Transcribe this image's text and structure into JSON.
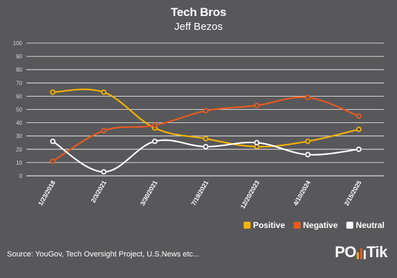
{
  "chart_data": {
    "type": "line",
    "title": "Tech Bros",
    "subtitle": "Jeff Bezos",
    "categories": [
      "1/23/2018",
      "2/3/2021",
      "3/30/2021",
      "7/19/2021",
      "12/20/2023",
      "4/10/2024",
      "2/15/2025"
    ],
    "series": [
      {
        "name": "Positive",
        "color": "#f5b300",
        "values": [
          63,
          63,
          36,
          28,
          22,
          26,
          35
        ]
      },
      {
        "name": "Negative",
        "color": "#ea5a1f",
        "values": [
          11,
          34,
          38,
          49,
          53,
          59,
          45
        ]
      },
      {
        "name": "Neutral",
        "color": "#ffffff",
        "values": [
          26,
          3,
          26,
          22,
          25,
          16,
          20
        ]
      }
    ],
    "ylim": [
      0,
      100
    ],
    "yticks": [
      "0",
      "10",
      "20",
      "30",
      "40",
      "50",
      "60",
      "70",
      "80",
      "90",
      "100"
    ],
    "grid": true,
    "legend_position": "bottom-right"
  },
  "footer": {
    "source": "Source: YouGov, Tech Oversight Project, U.S.News etc...",
    "logo_left": "PO",
    "logo_right": "Tik",
    "logo_bar_colors": [
      "#f5b300",
      "#ea5a1f",
      "#ffffff"
    ]
  }
}
